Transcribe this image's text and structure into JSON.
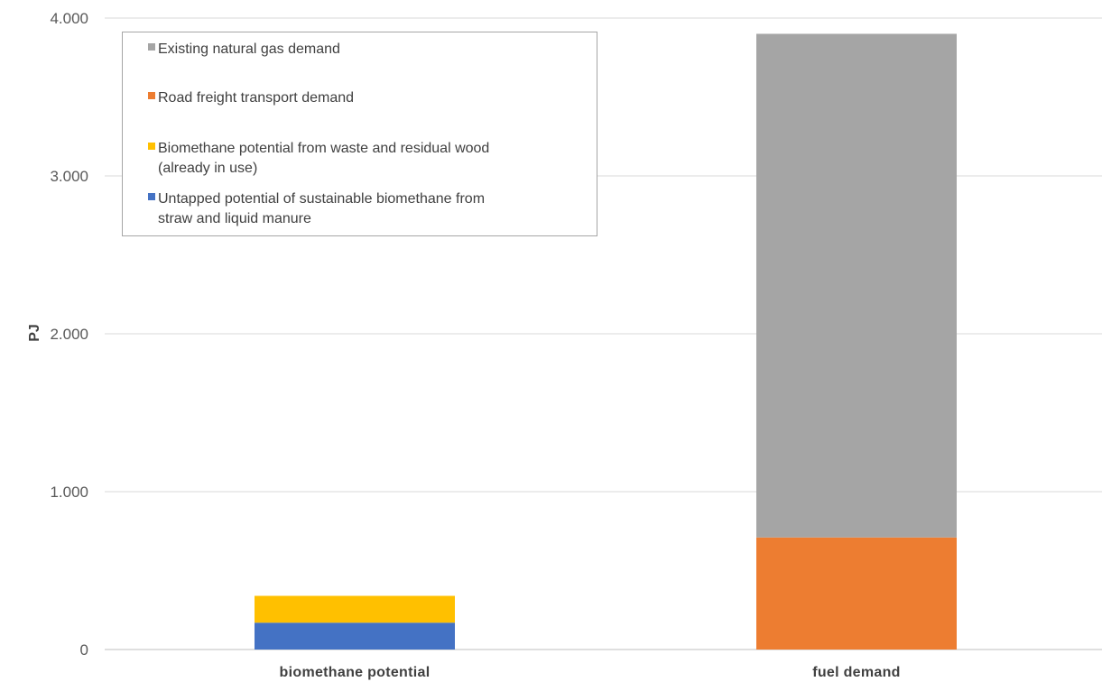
{
  "chart_data": {
    "type": "bar",
    "stacked": true,
    "categories": [
      "biomethane potential",
      "fuel demand"
    ],
    "ylabel": "PJ",
    "ylim": [
      0,
      4000
    ],
    "yticks": [
      0,
      1000,
      2000,
      3000,
      4000
    ],
    "ytick_labels": [
      "0",
      "1.000",
      "2.000",
      "3.000",
      "4.000"
    ],
    "grid": true,
    "legend_position": "top-left",
    "series": [
      {
        "name": "Untapped potential of sustainable biomethane from straw and liquid manure",
        "color": "#4472C4",
        "values": [
          170,
          0
        ]
      },
      {
        "name": "Biomethane potential from waste and residual wood (already in use)",
        "color": "#FFC000",
        "values": [
          170,
          0
        ]
      },
      {
        "name": "Road freight transport demand",
        "color": "#ED7D31",
        "values": [
          0,
          710
        ]
      },
      {
        "name": "Existing natural gas demand",
        "color": "#A5A5A5",
        "values": [
          0,
          3190
        ]
      }
    ],
    "legend_order": [
      3,
      2,
      1,
      0
    ],
    "legend_lines": [
      [
        "Existing natural gas demand"
      ],
      [
        "Road freight transport demand"
      ],
      [
        "Biomethane potential from waste and residual wood",
        "(already in use)"
      ],
      [
        "Untapped potential of sustainable biomethane from",
        "straw and liquid manure"
      ]
    ]
  }
}
